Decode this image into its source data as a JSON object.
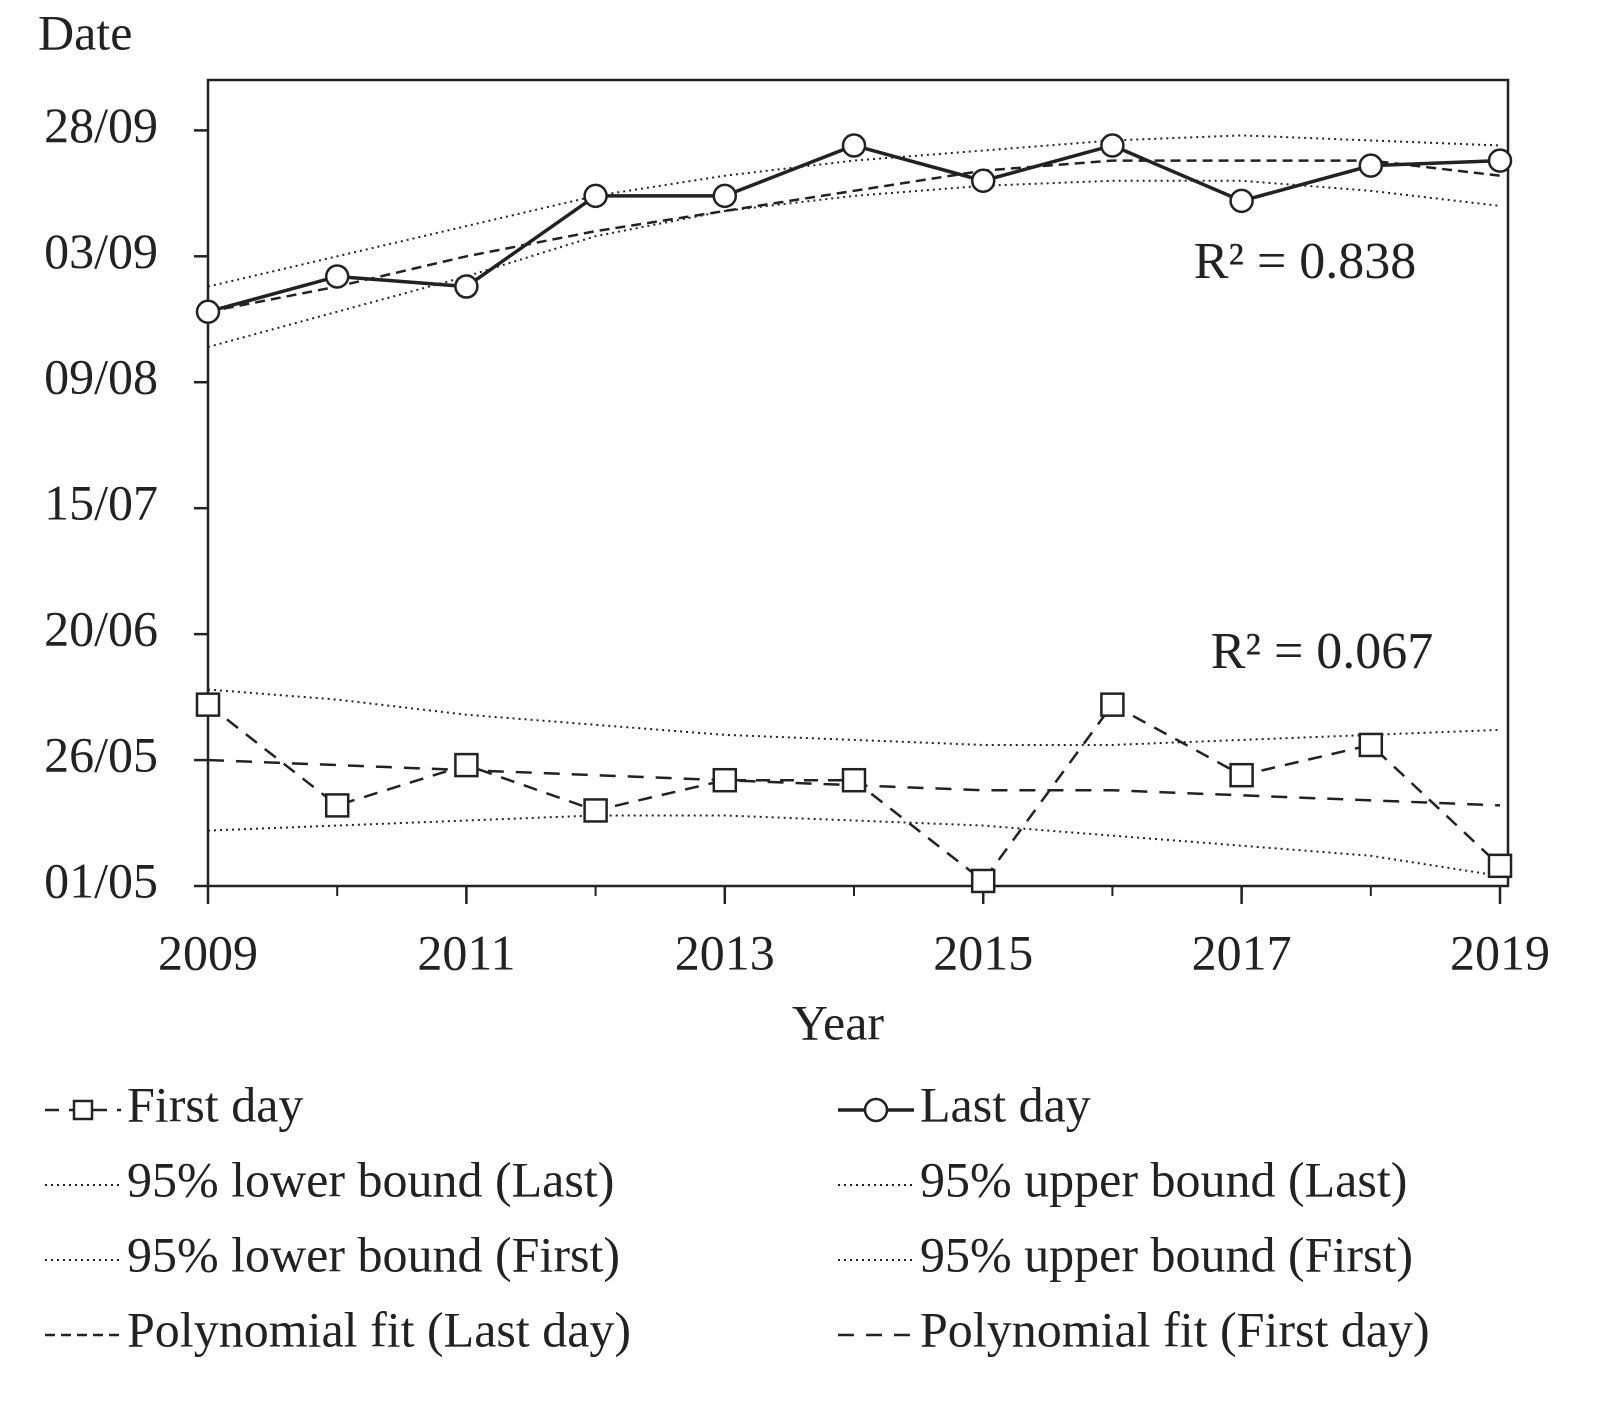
{
  "chart_data": {
    "type": "line",
    "y_label": "Date",
    "x_label": "Year",
    "x": [
      2009,
      2010,
      2011,
      2012,
      2013,
      2014,
      2015,
      2016,
      2017,
      2018,
      2019
    ],
    "xlim": [
      2009,
      2019
    ],
    "xticks": [
      2009,
      2011,
      2013,
      2015,
      2017,
      2019
    ],
    "ylim": [
      121,
      281
    ],
    "yticks": [
      {
        "value": 121,
        "label": "01/05"
      },
      {
        "value": 146,
        "label": "26/05"
      },
      {
        "value": 171,
        "label": "20/06"
      },
      {
        "value": 196,
        "label": "15/07"
      },
      {
        "value": 221,
        "label": "09/08"
      },
      {
        "value": 246,
        "label": "03/09"
      },
      {
        "value": 271,
        "label": "28/09"
      }
    ],
    "series": [
      {
        "name": "First day",
        "color": "#222222",
        "line_style": "dashed",
        "marker": "square",
        "values": [
          157,
          137,
          145,
          136,
          142,
          142,
          122,
          157,
          143,
          149,
          125
        ]
      },
      {
        "name": "Last day",
        "color": "#222222",
        "line_style": "solid",
        "marker": "circle",
        "values": [
          235,
          242,
          240,
          258,
          258,
          268,
          261,
          268,
          257,
          264,
          265
        ]
      },
      {
        "name": "95% lower bound (Last)",
        "color": "#222222",
        "line_style": "dotted",
        "values": [
          228,
          235,
          242,
          250,
          255,
          258,
          260,
          261,
          261,
          259,
          256
        ]
      },
      {
        "name": "95% upper bound (Last)",
        "color": "#222222",
        "line_style": "dotted",
        "values": [
          240,
          246,
          252,
          258,
          262,
          265,
          267,
          269,
          270,
          269,
          268
        ]
      },
      {
        "name": "95% lower bound (First)",
        "color": "#222222",
        "line_style": "dotted",
        "values": [
          132,
          133,
          134,
          135,
          135,
          134,
          133,
          131,
          129,
          127,
          123
        ]
      },
      {
        "name": "95% upper bound (First)",
        "color": "#222222",
        "line_style": "dotted",
        "values": [
          160,
          158,
          155,
          153,
          151,
          150,
          149,
          149,
          150,
          151,
          152
        ]
      },
      {
        "name": "Polynomial fit (Last day)",
        "color": "#222222",
        "line_style": "short-dash",
        "values": [
          235,
          240,
          246,
          251,
          255,
          259,
          263,
          265,
          265,
          265,
          262
        ]
      },
      {
        "name": "Polynomial fit (First day)",
        "color": "#222222",
        "line_style": "long-dash",
        "values": [
          146,
          145,
          144,
          143,
          142,
          141,
          140,
          140,
          139,
          138,
          137
        ]
      }
    ],
    "annotations": [
      {
        "text": "R² = 0.838"
      },
      {
        "text": "R² = 0.067"
      }
    ]
  }
}
